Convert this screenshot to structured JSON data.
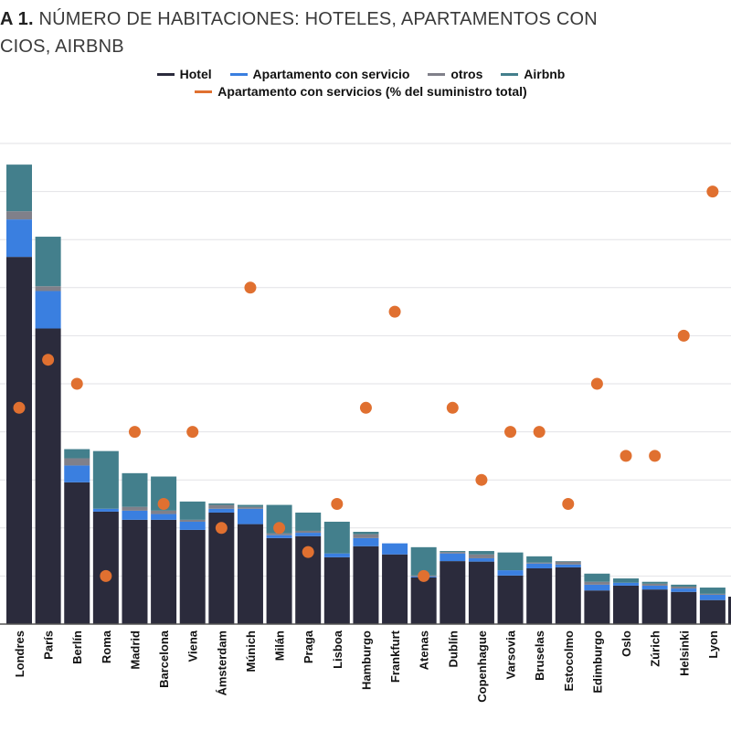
{
  "title": {
    "prefix": "A 1.",
    "line1": "NÚMERO DE HABITACIONES: HOTELES, APARTAMENTOS CON",
    "line2": "CIOS, AIRBNB"
  },
  "colors": {
    "hotel": "#2b2b3c",
    "serviced": "#3a7fe0",
    "others": "#80808a",
    "airbnb": "#437f8c",
    "pct": "#e07030",
    "grid": "#e2e2e6"
  },
  "chart_data": {
    "type": "bar",
    "stacked": true,
    "title": "NÚMERO DE HABITACIONES: HOTELES, APARTAMENTOS CON SERVICIOS, AIRBNB",
    "xlabel": "",
    "ylabel": "",
    "ylim": [
      0,
      10
    ],
    "grid": true,
    "legend_placement": "top-center",
    "note": "y-axis tick labels not visible; values in gridline units",
    "categories": [
      "Londres",
      "París",
      "Berlín",
      "Roma",
      "Madrid",
      "Barcelona",
      "Viena",
      "Ámsterdam",
      "Múnich",
      "Milán",
      "Praga",
      "Lisboa",
      "Hamburgo",
      "Frankfurt",
      "Atenas",
      "Dublín",
      "Copenhague",
      "Varsovia",
      "Bruselas",
      "Estocolmo",
      "Edimburgo",
      "Oslo",
      "Zúrich",
      "Helsinki",
      "Lyon"
    ],
    "series": [
      {
        "name": "Hotel",
        "type": "bar",
        "values": [
          7.64,
          6.15,
          2.95,
          2.34,
          2.17,
          2.17,
          1.96,
          2.32,
          2.08,
          1.79,
          1.83,
          1.39,
          1.62,
          1.45,
          0.97,
          1.31,
          1.3,
          1.01,
          1.16,
          1.18,
          0.7,
          0.8,
          0.72,
          0.67,
          0.5
        ]
      },
      {
        "name": "Apartamento con servicio",
        "type": "bar",
        "values": [
          0.78,
          0.78,
          0.35,
          0.06,
          0.19,
          0.12,
          0.17,
          0.08,
          0.32,
          0.06,
          0.07,
          0.08,
          0.17,
          0.23,
          0.02,
          0.16,
          0.07,
          0.11,
          0.1,
          0.06,
          0.12,
          0.06,
          0.08,
          0.07,
          0.11
        ]
      },
      {
        "name": "otros",
        "type": "bar",
        "values": [
          0.17,
          0.1,
          0.15,
          0.0,
          0.08,
          0.07,
          0.04,
          0.08,
          0.04,
          0.04,
          0.04,
          0.0,
          0.08,
          0.0,
          0.02,
          0.03,
          0.08,
          0.0,
          0.02,
          0.06,
          0.06,
          0.0,
          0.04,
          0.04,
          0.02
        ]
      },
      {
        "name": "Airbnb",
        "type": "bar",
        "values": [
          0.97,
          1.03,
          0.19,
          1.2,
          0.7,
          0.71,
          0.38,
          0.03,
          0.04,
          0.59,
          0.38,
          0.66,
          0.05,
          0.0,
          0.59,
          0.02,
          0.07,
          0.37,
          0.13,
          0.01,
          0.17,
          0.09,
          0.04,
          0.04,
          0.13
        ]
      },
      {
        "name": "Apartamento con servicios (% del suministro total)",
        "type": "scatter",
        "values": [
          4.5,
          5.5,
          5,
          1,
          4,
          2.5,
          4,
          2,
          7,
          2,
          1.5,
          2.5,
          4.5,
          6.5,
          1,
          4.5,
          3,
          4,
          4,
          2.5,
          5,
          3.5,
          3.5,
          6,
          9
        ]
      }
    ]
  }
}
